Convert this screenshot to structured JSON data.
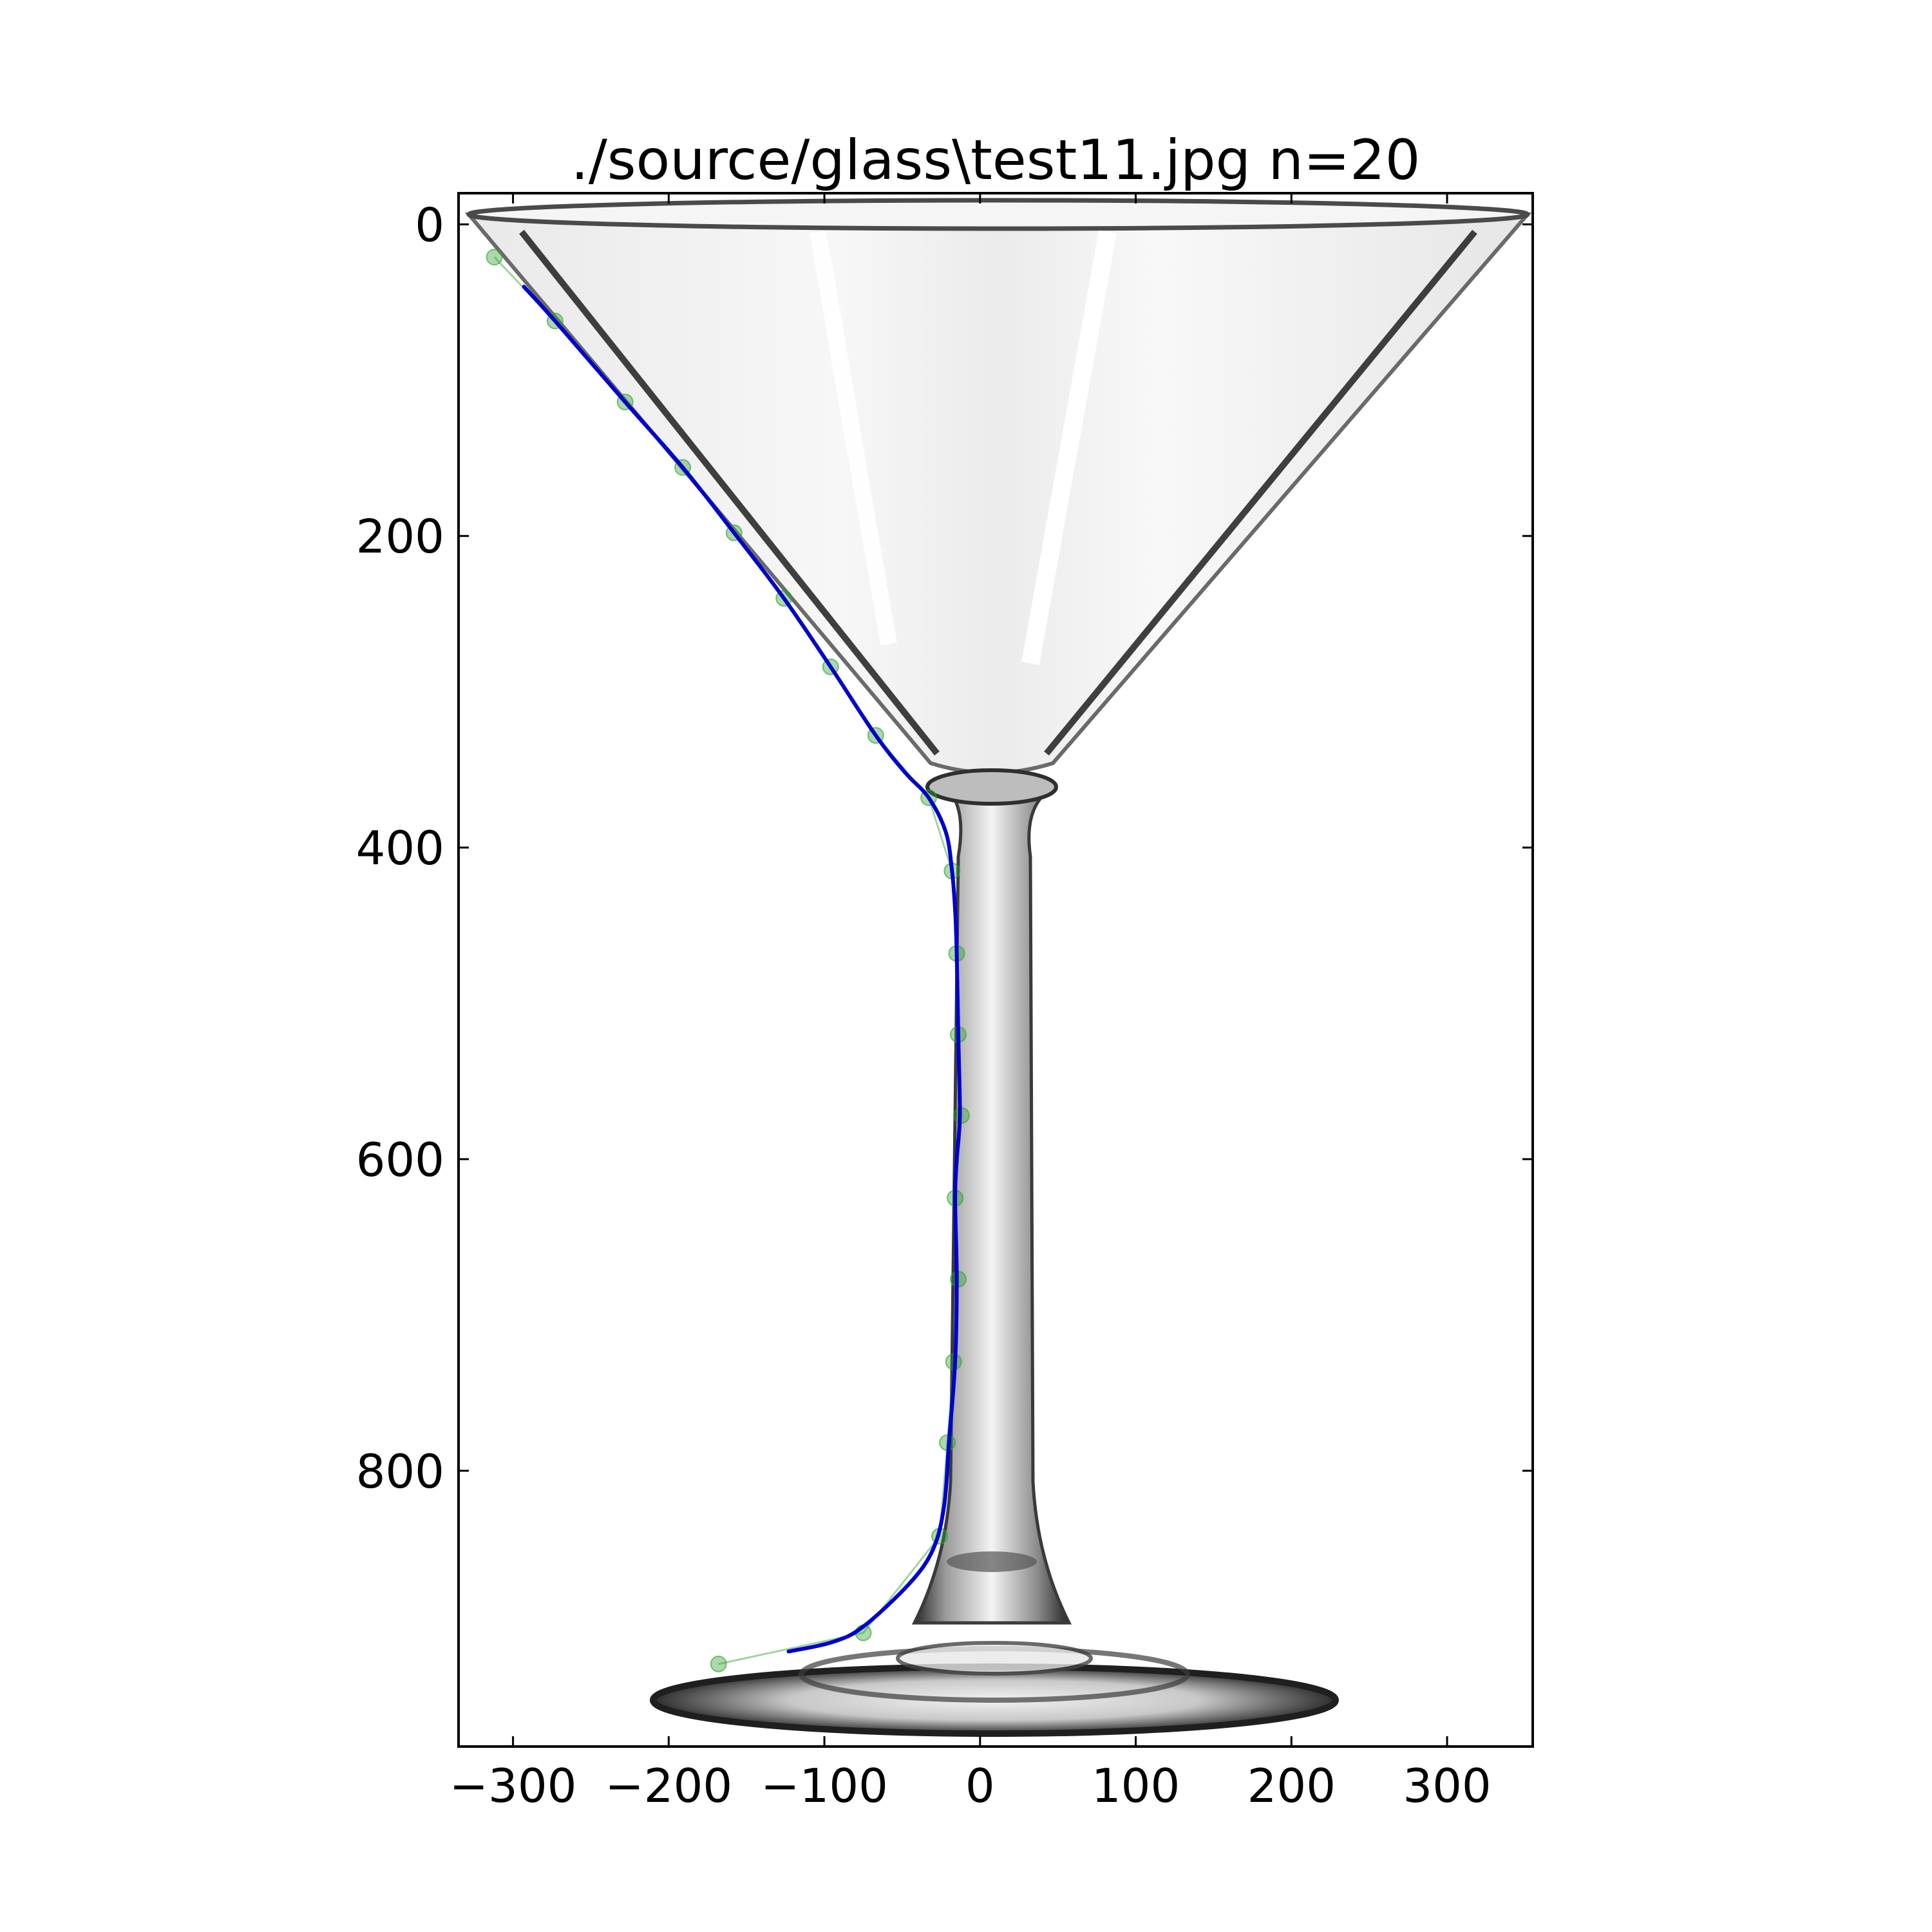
{
  "chart_data": {
    "type": "line",
    "title": "./source/glass\\test11.jpg n=20",
    "xlabel": "",
    "ylabel": "",
    "xlim": [
      -335,
      355
    ],
    "ylim": [
      977,
      -20
    ],
    "y_inverted": true,
    "grid": false,
    "background_image": "martini-glass-photo",
    "xticks": [
      -300,
      -200,
      -100,
      0,
      100,
      200,
      300
    ],
    "xtick_labels": [
      "−300",
      "−200",
      "−100",
      "0",
      "100",
      "200",
      "300"
    ],
    "yticks": [
      0,
      200,
      400,
      600,
      800
    ],
    "ytick_labels": [
      "0",
      "200",
      "400",
      "600",
      "800"
    ],
    "series": [
      {
        "kind": "control-points",
        "color": "#2ca02c",
        "points": [
          [
            -312,
            21
          ],
          [
            -273,
            62
          ],
          [
            -228,
            114
          ],
          [
            -191,
            156
          ],
          [
            -158,
            198
          ],
          [
            -126,
            240
          ],
          [
            -96,
            284
          ],
          [
            -67,
            328
          ],
          [
            -33,
            368
          ],
          [
            -18,
            415
          ],
          [
            -15,
            468
          ],
          [
            -14,
            520
          ],
          [
            -12,
            572
          ],
          [
            -16,
            625
          ],
          [
            -14,
            677
          ],
          [
            -17,
            730
          ],
          [
            -21,
            782
          ],
          [
            -26,
            842
          ],
          [
            -75,
            904
          ],
          [
            -168,
            924
          ]
        ]
      },
      {
        "kind": "fitted-curve",
        "color": "#0000cc",
        "points": [
          [
            -293,
            40
          ],
          [
            -273,
            62
          ],
          [
            -228,
            114
          ],
          [
            -191,
            156
          ],
          [
            -158,
            198
          ],
          [
            -126,
            240
          ],
          [
            -96,
            284
          ],
          [
            -67,
            328
          ],
          [
            -48,
            352
          ],
          [
            -33,
            368
          ],
          [
            -22,
            390
          ],
          [
            -18,
            415
          ],
          [
            -16,
            440
          ],
          [
            -15,
            468
          ],
          [
            -14,
            520
          ],
          [
            -13,
            572
          ],
          [
            -15,
            600
          ],
          [
            -16,
            625
          ],
          [
            -15,
            677
          ],
          [
            -16,
            730
          ],
          [
            -20,
            782
          ],
          [
            -23,
            822
          ],
          [
            -30,
            850
          ],
          [
            -45,
            872
          ],
          [
            -75,
            900
          ],
          [
            -95,
            910
          ],
          [
            -123,
            916
          ]
        ]
      }
    ]
  }
}
